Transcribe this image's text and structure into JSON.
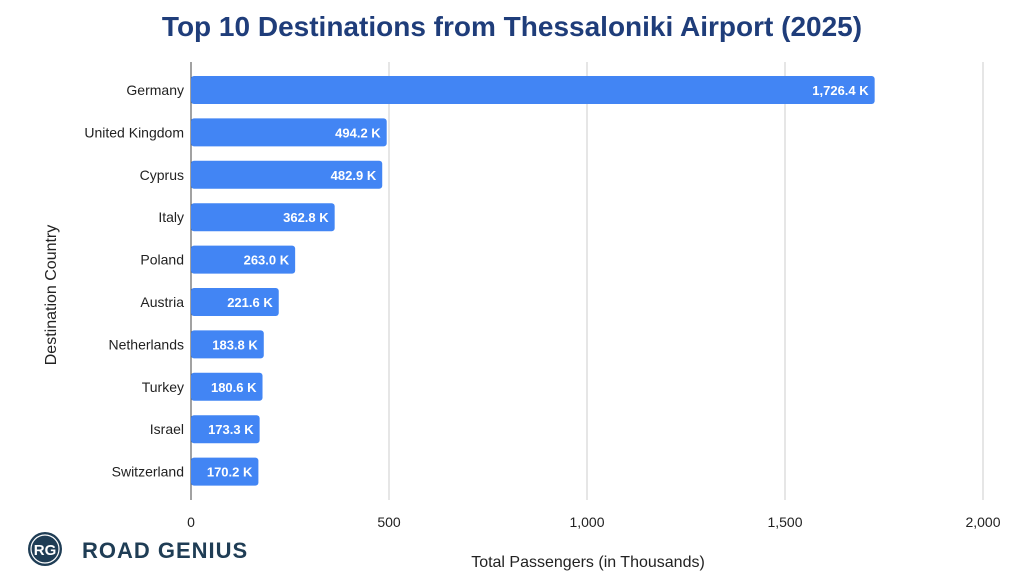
{
  "chart_data": {
    "type": "bar",
    "orientation": "horizontal",
    "title": "Top 10 Destinations from Thessaloniki Airport (2025)",
    "xlabel": "Total Passengers (in Thousands)",
    "ylabel": "Destination Country",
    "categories": [
      "Germany",
      "United Kingdom",
      "Cyprus",
      "Italy",
      "Poland",
      "Austria",
      "Netherlands",
      "Turkey",
      "Israel",
      "Switzerland"
    ],
    "values": [
      1726.4,
      494.2,
      482.9,
      362.8,
      263.0,
      221.6,
      183.8,
      180.6,
      173.3,
      170.2
    ],
    "value_labels": [
      "1,726.4 K",
      "494.2 K",
      "482.9 K",
      "362.8 K",
      "263.0 K",
      "221.6 K",
      "183.8 K",
      "180.6 K",
      "173.3 K",
      "170.2 K"
    ],
    "xlim": [
      0,
      2000
    ],
    "xticks": [
      0,
      500,
      1000,
      1500,
      2000
    ],
    "xtick_labels": [
      "0",
      "500",
      "1,000",
      "1,500",
      "2,000"
    ],
    "grid": true,
    "bar_color": "#4285f4"
  },
  "brand": {
    "logo_initials": "RG",
    "name": "ROAD GENIUS",
    "color": "#1f3d55"
  }
}
